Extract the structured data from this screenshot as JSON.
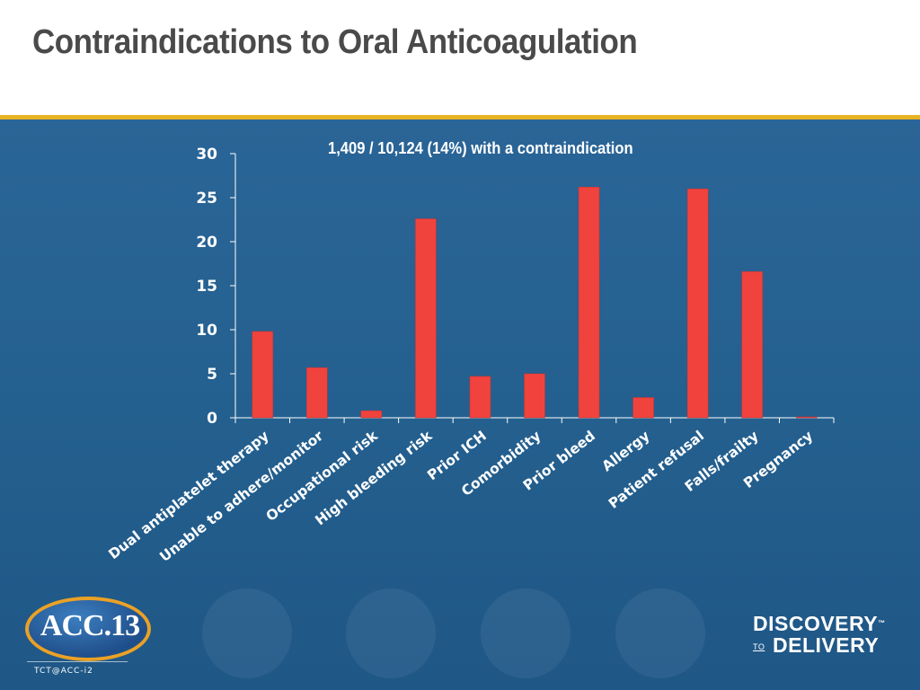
{
  "slide": {
    "title": "Contraindications to Oral Anticoagulation",
    "colors": {
      "header_bg": "#ffffff",
      "title_text": "#4a4a4a",
      "gold_rule": "#e8b323",
      "panel_bg": "#2a6597",
      "bar": "#f0433e",
      "axis": "#ffffff"
    }
  },
  "chart_data": {
    "type": "bar",
    "title": "1,409 / 10,124 (14%) with a contraindication",
    "xlabel": "",
    "ylabel": "",
    "ylim": [
      0,
      30
    ],
    "yticks": [
      0,
      5,
      10,
      15,
      20,
      25,
      30
    ],
    "categories": [
      "Dual antiplatelet therapy",
      "Unable to adhere/monitor",
      "Occupational risk",
      "High bleeding risk",
      "Prior ICH",
      "Comorbidity",
      "Prior bleed",
      "Allergy",
      "Patient refusal",
      "Falls/frailty",
      "Pregnancy"
    ],
    "values": [
      9.8,
      5.7,
      0.8,
      22.6,
      4.7,
      5.0,
      26.2,
      2.3,
      26.0,
      16.6,
      0.1
    ],
    "legend": "none",
    "grid": false
  },
  "logos": {
    "acc_logo_text": "ACC.13",
    "acc_tagline": "TCT@ACC-i2",
    "d2d_top": "DISCOVERY",
    "d2d_to": "TO",
    "d2d_bottom": "DELIVERY",
    "d2d_tm": "™"
  }
}
